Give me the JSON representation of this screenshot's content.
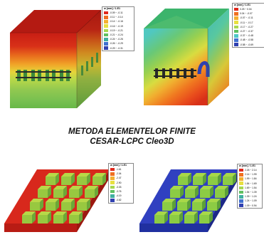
{
  "title": {
    "line1": "METODA ELEMENTELOR FINITE",
    "line2": "CESAR-LCPC Cleo3D"
  },
  "panels": [
    {
      "legend": {
        "title": "w [mm] / 1.E1",
        "rows": [
          "-0.09 ~ -0.11",
          "-0.11 ~ -0.14",
          "-0.14 ~ -0.16",
          "-0.16 ~ -0.19",
          "-0.19 ~ -0.21",
          "-0.21 ~ -0.24",
          "-0.24 ~ -0.26",
          "-0.26 ~ -0.29",
          "-0.29 ~ -0.31"
        ],
        "colors": [
          "#e0281c",
          "#f07020",
          "#f4b030",
          "#e8e040",
          "#a8d850",
          "#60c060",
          "#40b0a0",
          "#4070d0",
          "#3040b0"
        ]
      }
    },
    {
      "legend": {
        "title": "w [mm] / 1.E1",
        "rows": [
          "0.25 ~ 0.04",
          "0.04 ~ -0.07",
          "-0.07 ~ -0.11",
          "-0.11 ~ -0.17",
          "-0.17 ~ -0.27",
          "-0.27 ~ -0.37",
          "-0.37 ~ -0.48",
          "-0.48 ~ -0.58",
          "-0.58 ~ -0.69"
        ],
        "colors": [
          "#e0281c",
          "#f07020",
          "#f4b030",
          "#e8e040",
          "#a8d850",
          "#60c060",
          "#50c8c8",
          "#4070d0",
          "#3040b0"
        ]
      }
    },
    {
      "legend": {
        "title": "w [mm] / 1.E1",
        "rows": [
          "-1.61",
          "-2.04",
          "-2.47",
          "-2.90",
          "-3.33",
          "-3.76",
          "-4.19",
          "-4.62"
        ],
        "colors": [
          "#e0281c",
          "#f07020",
          "#f4b030",
          "#e8e040",
          "#a8d850",
          "#60c060",
          "#40b0a0",
          "#3040b0"
        ]
      }
    },
    {
      "legend": {
        "title": "w [mm] / 1.E1",
        "rows": [
          "2.26 ~ 2.14",
          "2.14 ~ 1.99",
          "1.99 ~ 1.84",
          "1.84 ~ 1.69",
          "1.69 ~ 1.54",
          "1.54 ~ 1.39",
          "1.39 ~ 1.24",
          "1.24 ~ 1.09",
          "1.09 ~ 0.94"
        ],
        "colors": [
          "#e0281c",
          "#f07020",
          "#f4b030",
          "#e8e040",
          "#a8d850",
          "#60c060",
          "#40b0a0",
          "#4070d0",
          "#3040b0"
        ]
      }
    }
  ]
}
